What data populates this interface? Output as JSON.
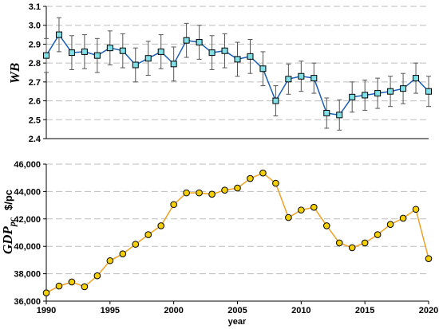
{
  "chart_data": [
    {
      "type": "line",
      "ylabel": "WB",
      "ylim": [
        2.4,
        3.1
      ],
      "yticks": [
        "2.4",
        "2.5",
        "2.6",
        "2.7",
        "2.8",
        "2.9",
        "3.0",
        "3.1"
      ],
      "xlim": [
        1990,
        2020
      ],
      "grid": true,
      "x": [
        1990,
        1991,
        1992,
        1993,
        1994,
        1995,
        1996,
        1997,
        1998,
        1999,
        2000,
        2001,
        2002,
        2003,
        2004,
        2005,
        2006,
        2007,
        2008,
        2009,
        2010,
        2011,
        2012,
        2013,
        2014,
        2015,
        2016,
        2017,
        2018,
        2019,
        2020
      ],
      "series": [
        {
          "values": [
            2.84,
            2.95,
            2.855,
            2.86,
            2.84,
            2.88,
            2.865,
            2.79,
            2.825,
            2.86,
            2.795,
            2.92,
            2.91,
            2.855,
            2.865,
            2.82,
            2.835,
            2.77,
            2.6,
            2.715,
            2.73,
            2.72,
            2.535,
            2.525,
            2.62,
            2.63,
            2.64,
            2.65,
            2.665,
            2.72,
            2.65
          ],
          "error": [
            0.09,
            0.09,
            0.09,
            0.09,
            0.09,
            0.09,
            0.09,
            0.09,
            0.09,
            0.09,
            0.09,
            0.09,
            0.09,
            0.09,
            0.09,
            0.09,
            0.09,
            0.09,
            0.08,
            0.08,
            0.08,
            0.08,
            0.08,
            0.08,
            0.08,
            0.08,
            0.08,
            0.08,
            0.08,
            0.08,
            0.08
          ],
          "line_color": "#1a5fb4",
          "marker_color": "#7fe0e8"
        }
      ]
    },
    {
      "type": "line",
      "ylabel": "GDP",
      "ylabel_sub": "pc",
      "yunit": "$/pc",
      "xlabel": "year",
      "ylim": [
        36000,
        46000
      ],
      "yticks": [
        "36,000",
        "38,000",
        "40,000",
        "42,000",
        "44,000",
        "46,000"
      ],
      "xlim": [
        1990,
        2020
      ],
      "xticks": [
        "1990",
        "1995",
        "2000",
        "2005",
        "2010",
        "2015",
        "2020"
      ],
      "grid": true,
      "x": [
        1990,
        1991,
        1992,
        1993,
        1994,
        1995,
        1996,
        1997,
        1998,
        1999,
        2000,
        2001,
        2002,
        2003,
        2004,
        2005,
        2006,
        2007,
        2008,
        2009,
        2010,
        2011,
        2012,
        2013,
        2014,
        2015,
        2016,
        2017,
        2018,
        2019,
        2020
      ],
      "series": [
        {
          "values": [
            36600,
            37100,
            37400,
            37050,
            37850,
            38950,
            39450,
            40150,
            40850,
            41500,
            43050,
            43900,
            43900,
            43800,
            44100,
            44250,
            44950,
            45350,
            44600,
            42100,
            42650,
            42850,
            41500,
            40250,
            39900,
            40250,
            40850,
            41600,
            42050,
            42700,
            39100
          ],
          "line_color": "#f0a020",
          "marker_color": "#f5d000"
        }
      ]
    }
  ]
}
